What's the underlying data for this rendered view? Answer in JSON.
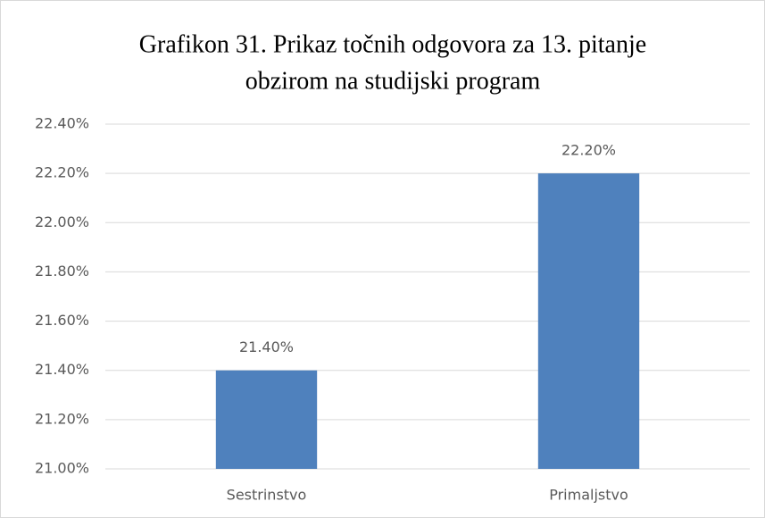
{
  "chart_data": {
    "type": "bar",
    "title": [
      "Grafikon 31. Prikaz točnih odgovora za 13. pitanje",
      "obzirom na studijski program"
    ],
    "categories": [
      "Sestrinstvo",
      "Primaljstvo"
    ],
    "values": [
      21.4,
      22.2
    ],
    "value_labels": [
      "21.40%",
      "22.20%"
    ],
    "color": "#4f81bd",
    "ylim": [
      21.0,
      22.4
    ],
    "yticks": [
      {
        "value": 21.0,
        "label": "21.00%"
      },
      {
        "value": 21.2,
        "label": "21.20%"
      },
      {
        "value": 21.4,
        "label": "21.40%"
      },
      {
        "value": 21.6,
        "label": "21.60%"
      },
      {
        "value": 21.8,
        "label": "21.80%"
      },
      {
        "value": 22.0,
        "label": "22.00%"
      },
      {
        "value": 22.2,
        "label": "22.20%"
      },
      {
        "value": 22.4,
        "label": "22.40%"
      }
    ],
    "grid": true
  }
}
